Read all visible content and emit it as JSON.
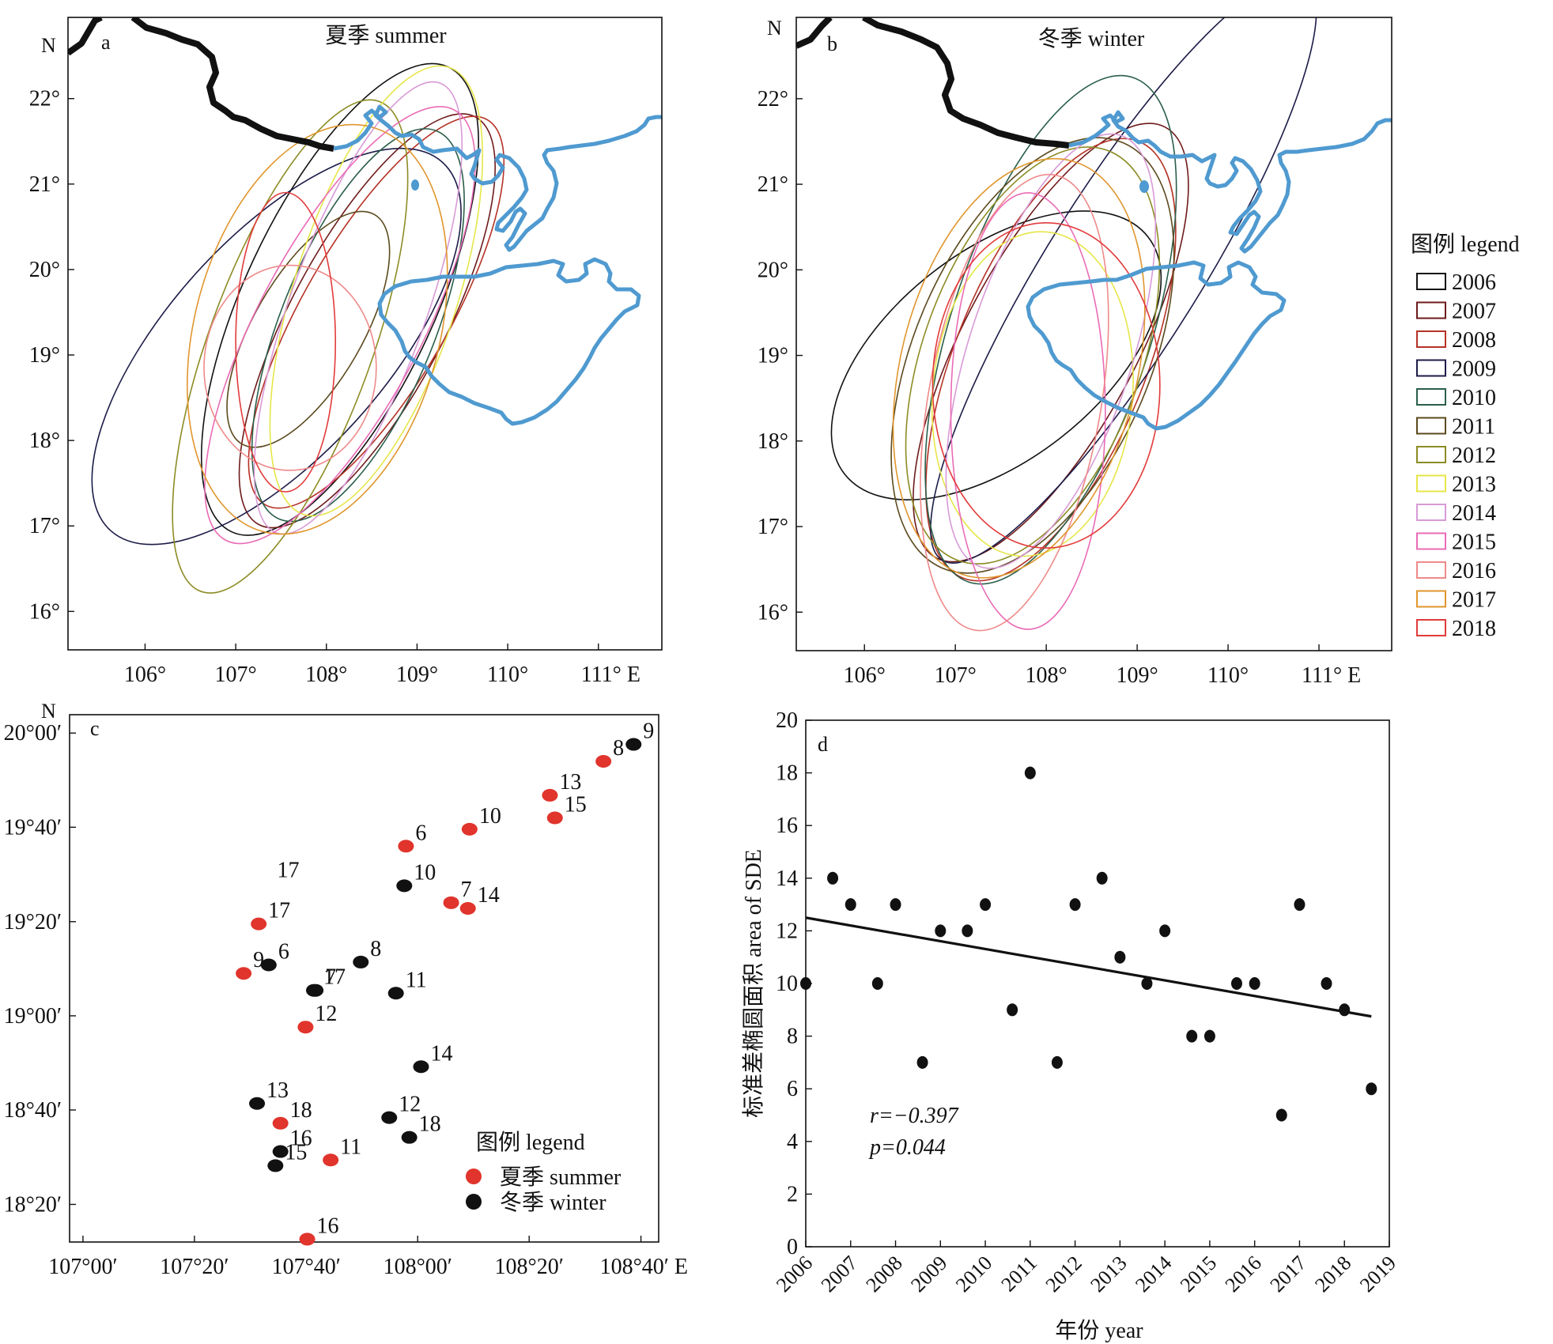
{
  "colors": {
    "coast": "#4f9ad0",
    "border": "#111111",
    "summer": "#e0342c",
    "winter": "#111111",
    "years": {
      "2006": "#111111",
      "2007": "#6e1b1b",
      "2008": "#b53226",
      "2009": "#1c1c48",
      "2010": "#2a5f4a",
      "2011": "#5c4a1e",
      "2012": "#8c8c25",
      "2013": "#e6e64a",
      "2014": "#d89ad6",
      "2015": "#ea6bb6",
      "2016": "#ef8a8a",
      "2017": "#e0962e",
      "2018": "#e23b3b"
    }
  },
  "legend_panel": {
    "title": "图例 legend",
    "years": [
      "2006",
      "2007",
      "2008",
      "2009",
      "2010",
      "2011",
      "2012",
      "2013",
      "2014",
      "2015",
      "2016",
      "2017",
      "2018"
    ]
  },
  "chart_data": [
    {
      "id": "a",
      "type": "map",
      "panel_letter": "a",
      "title": "夏季 summer",
      "north_label": "N",
      "x_ticks": [
        "106°",
        "107°",
        "108°",
        "109°",
        "110°",
        "111° E"
      ],
      "y_ticks": [
        "16°",
        "17°",
        "18°",
        "19°",
        "20°",
        "21°",
        "22°"
      ],
      "xlim": [
        105.15,
        111.7
      ],
      "ylim": [
        15.55,
        22.95
      ],
      "ellipses": [
        {
          "year": "2006",
          "cx": 108.15,
          "cy": 19.65,
          "rx": 1.05,
          "ry": 3.0,
          "rot": 25
        },
        {
          "year": "2007",
          "cx": 108.45,
          "cy": 19.4,
          "rx": 0.85,
          "ry": 2.7,
          "rot": 28
        },
        {
          "year": "2008",
          "cx": 108.55,
          "cy": 19.5,
          "rx": 0.8,
          "ry": 2.6,
          "rot": 30
        },
        {
          "year": "2009",
          "cx": 107.45,
          "cy": 19.1,
          "rx": 1.2,
          "ry": 2.9,
          "rot": 42
        },
        {
          "year": "2010",
          "cx": 108.35,
          "cy": 19.35,
          "rx": 0.85,
          "ry": 2.45,
          "rot": 22
        },
        {
          "year": "2011",
          "cx": 107.8,
          "cy": 19.3,
          "rx": 0.6,
          "ry": 1.55,
          "rot": 30
        },
        {
          "year": "2012",
          "cx": 107.6,
          "cy": 19.1,
          "rx": 0.9,
          "ry": 3.05,
          "rot": 20
        },
        {
          "year": "2013",
          "cx": 108.55,
          "cy": 19.75,
          "rx": 0.9,
          "ry": 2.75,
          "rot": 18
        },
        {
          "year": "2014",
          "cx": 108.35,
          "cy": 19.55,
          "rx": 0.75,
          "ry": 2.8,
          "rot": 20
        },
        {
          "year": "2015",
          "cx": 108.15,
          "cy": 19.35,
          "rx": 0.9,
          "ry": 2.85,
          "rot": 28
        },
        {
          "year": "2016",
          "cx": 107.6,
          "cy": 18.85,
          "rx": 0.95,
          "ry": 1.2,
          "rot": 0
        },
        {
          "year": "2017",
          "cx": 107.9,
          "cy": 19.3,
          "rx": 1.35,
          "ry": 2.45,
          "rot": 15
        },
        {
          "year": "2018",
          "cx": 107.55,
          "cy": 19.15,
          "rx": 0.55,
          "ry": 1.75,
          "rot": 0
        }
      ]
    },
    {
      "id": "b",
      "type": "map",
      "panel_letter": "b",
      "title": "冬季 winter",
      "north_label": "N",
      "x_ticks": [
        "106°",
        "107°",
        "108°",
        "109°",
        "110°",
        "111° E"
      ],
      "y_ticks": [
        "16°",
        "17°",
        "18°",
        "19°",
        "20°",
        "21°",
        "22°"
      ],
      "xlim": [
        105.25,
        111.8
      ],
      "ylim": [
        15.55,
        22.95
      ],
      "ellipses": [
        {
          "year": "2006",
          "cx": 107.45,
          "cy": 19.0,
          "rx": 1.15,
          "ry": 2.25,
          "rot": 52
        },
        {
          "year": "2007",
          "cx": 108.05,
          "cy": 19.15,
          "rx": 0.95,
          "ry": 2.85,
          "rot": 28
        },
        {
          "year": "2008",
          "cx": 108.05,
          "cy": 18.95,
          "rx": 1.05,
          "ry": 2.75,
          "rot": 22
        },
        {
          "year": "2009",
          "cx": 108.85,
          "cy": 20.0,
          "rx": 0.85,
          "ry": 4.0,
          "rot": 32
        },
        {
          "year": "2010",
          "cx": 108.05,
          "cy": 19.3,
          "rx": 1.1,
          "ry": 3.1,
          "rot": 18
        },
        {
          "year": "2011",
          "cx": 107.85,
          "cy": 19.0,
          "rx": 1.3,
          "ry": 2.7,
          "rot": 23
        },
        {
          "year": "2012",
          "cx": 107.85,
          "cy": 19.0,
          "rx": 1.2,
          "ry": 2.55,
          "rot": 20
        },
        {
          "year": "2013",
          "cx": 107.85,
          "cy": 18.55,
          "rx": 1.1,
          "ry": 1.9,
          "rot": 5
        },
        {
          "year": "2014",
          "cx": 108.05,
          "cy": 19.05,
          "rx": 0.9,
          "ry": 2.65,
          "rot": 18
        },
        {
          "year": "2015",
          "cx": 107.8,
          "cy": 18.35,
          "rx": 0.85,
          "ry": 2.55,
          "rot": 0
        },
        {
          "year": "2016",
          "cx": 107.65,
          "cy": 18.45,
          "rx": 0.95,
          "ry": 2.7,
          "rot": 10
        },
        {
          "year": "2017",
          "cx": 107.7,
          "cy": 18.85,
          "rx": 1.3,
          "ry": 2.5,
          "rot": 14
        },
        {
          "year": "2018",
          "cx": 108.0,
          "cy": 18.65,
          "rx": 1.25,
          "ry": 1.9,
          "rot": 0
        }
      ]
    },
    {
      "id": "c",
      "type": "scatter",
      "panel_letter": "c",
      "north_label": "N",
      "x_ticks": [
        {
          "v": 107.0,
          "label": "107°00′"
        },
        {
          "v": 107.333,
          "label": "107°20′"
        },
        {
          "v": 107.667,
          "label": "107°40′"
        },
        {
          "v": 108.0,
          "label": "108°00′"
        },
        {
          "v": 108.333,
          "label": "108°20′"
        },
        {
          "v": 108.667,
          "label": "108°40′ E"
        }
      ],
      "y_ticks": [
        {
          "v": 18.333,
          "label": "18°20′"
        },
        {
          "v": 18.667,
          "label": "18°40′"
        },
        {
          "v": 19.0,
          "label": "19°00′"
        },
        {
          "v": 19.333,
          "label": "19°20′"
        },
        {
          "v": 19.667,
          "label": "19°40′"
        },
        {
          "v": 20.0,
          "label": "20°00′"
        }
      ],
      "xlim": [
        106.96,
        108.72
      ],
      "ylim": [
        18.2,
        20.065
      ],
      "legend": {
        "title": "图例 legend",
        "summer": "夏季 summer",
        "winter": "冬季 winter"
      },
      "summer": [
        {
          "x": 107.48,
          "y": 19.15,
          "label": "9"
        },
        {
          "x": 107.525,
          "y": 19.325,
          "label": "17"
        },
        {
          "x": 107.665,
          "y": 18.96,
          "label": "12"
        },
        {
          "x": 107.59,
          "y": 18.62,
          "label": "18"
        },
        {
          "x": 107.74,
          "y": 18.49,
          "label": "11"
        },
        {
          "x": 107.67,
          "y": 18.21,
          "label": "16"
        },
        {
          "x": 107.965,
          "y": 19.6,
          "label": "6"
        },
        {
          "x": 108.1,
          "y": 19.4,
          "label": "7"
        },
        {
          "x": 108.15,
          "y": 19.38,
          "label": "14"
        },
        {
          "x": 108.155,
          "y": 19.66,
          "label": "10"
        },
        {
          "x": 108.395,
          "y": 19.78,
          "label": "13"
        },
        {
          "x": 108.41,
          "y": 19.7,
          "label": "15"
        },
        {
          "x": 108.555,
          "y": 19.9,
          "label": "8"
        }
      ],
      "summer_extra_label": {
        "x": 107.58,
        "y": 19.49,
        "text": "17"
      },
      "winter": [
        {
          "x": 107.555,
          "y": 19.18,
          "label": "6"
        },
        {
          "x": 107.695,
          "y": 19.09,
          "label": "7"
        },
        {
          "x": 107.69,
          "y": 19.09,
          "label": "17"
        },
        {
          "x": 107.83,
          "y": 19.19,
          "label": "8"
        },
        {
          "x": 107.935,
          "y": 19.08,
          "label": "11"
        },
        {
          "x": 107.96,
          "y": 19.46,
          "label": "10"
        },
        {
          "x": 108.01,
          "y": 18.82,
          "label": "14"
        },
        {
          "x": 107.52,
          "y": 18.69,
          "label": "13"
        },
        {
          "x": 107.59,
          "y": 18.52,
          "label": "16"
        },
        {
          "x": 107.575,
          "y": 18.47,
          "label": "15"
        },
        {
          "x": 107.915,
          "y": 18.64,
          "label": "12"
        },
        {
          "x": 107.975,
          "y": 18.57,
          "label": "18"
        },
        {
          "x": 108.645,
          "y": 19.96,
          "label": "9"
        }
      ]
    },
    {
      "id": "d",
      "type": "scatter",
      "panel_letter": "d",
      "xlabel": "年份 year",
      "ylabel": "标准差椭圆面积 area of SDE",
      "xlim": [
        2006,
        2019
      ],
      "ylim": [
        0,
        20
      ],
      "x_ticks": [
        2006,
        2007,
        2008,
        2009,
        2010,
        2011,
        2012,
        2013,
        2014,
        2015,
        2016,
        2017,
        2018,
        2019
      ],
      "y_ticks": [
        0,
        2,
        4,
        6,
        8,
        10,
        12,
        14,
        16,
        18,
        20
      ],
      "annotation_r": "r=−0.397",
      "annotation_p": "p=0.044",
      "points": [
        {
          "x": 2006.0,
          "y": 10
        },
        {
          "x": 2006.6,
          "y": 14
        },
        {
          "x": 2007.0,
          "y": 13
        },
        {
          "x": 2007.6,
          "y": 10
        },
        {
          "x": 2008.0,
          "y": 13
        },
        {
          "x": 2008.6,
          "y": 7
        },
        {
          "x": 2009.0,
          "y": 12
        },
        {
          "x": 2009.6,
          "y": 12
        },
        {
          "x": 2010.0,
          "y": 13
        },
        {
          "x": 2010.6,
          "y": 9
        },
        {
          "x": 2011.0,
          "y": 18
        },
        {
          "x": 2011.6,
          "y": 7
        },
        {
          "x": 2012.0,
          "y": 13
        },
        {
          "x": 2012.6,
          "y": 14
        },
        {
          "x": 2013.0,
          "y": 11
        },
        {
          "x": 2013.6,
          "y": 10
        },
        {
          "x": 2014.0,
          "y": 12
        },
        {
          "x": 2014.6,
          "y": 8
        },
        {
          "x": 2015.0,
          "y": 8
        },
        {
          "x": 2015.6,
          "y": 10
        },
        {
          "x": 2016.0,
          "y": 10
        },
        {
          "x": 2016.6,
          "y": 5
        },
        {
          "x": 2017.0,
          "y": 13
        },
        {
          "x": 2017.6,
          "y": 10
        },
        {
          "x": 2018.0,
          "y": 9
        },
        {
          "x": 2018.6,
          "y": 6
        }
      ],
      "trend": {
        "x0": 2006.0,
        "y0": 12.5,
        "x1": 2018.6,
        "y1": 8.75
      }
    }
  ]
}
